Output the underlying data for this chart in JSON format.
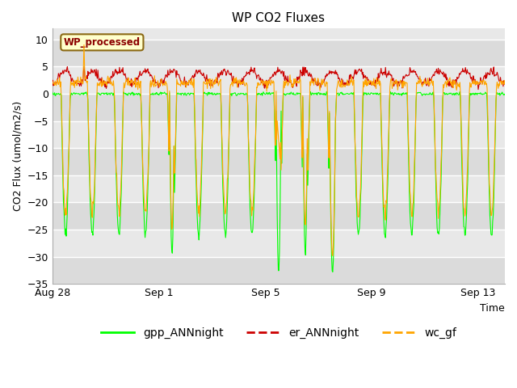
{
  "title": "WP CO2 Fluxes",
  "xlabel": "Time",
  "ylabel": "CO2 Flux (umol/m2/s)",
  "ylim": [
    -35,
    12
  ],
  "yticks": [
    -35,
    -30,
    -25,
    -20,
    -15,
    -10,
    -5,
    0,
    5,
    10
  ],
  "x_tick_labels": [
    "Aug 28",
    "Sep 1",
    "Sep 5",
    "Sep 9",
    "Sep 13"
  ],
  "tick_positions": [
    0,
    4,
    8,
    12,
    16
  ],
  "fig_bg_color": "#ffffff",
  "plot_bg_color": "#e8e8e8",
  "grid_color": "#ffffff",
  "gpp_color": "#00ff00",
  "er_color": "#cc0000",
  "wc_color": "#ffa500",
  "wp_box_color": "#ffffcc",
  "wp_text_color": "#8b0000",
  "wp_border_color": "#8b6914",
  "n_days": 17,
  "half_hour_steps": 48,
  "title_fontsize": 11,
  "axis_fontsize": 9,
  "legend_fontsize": 10,
  "tick_label_fontsize": 9
}
